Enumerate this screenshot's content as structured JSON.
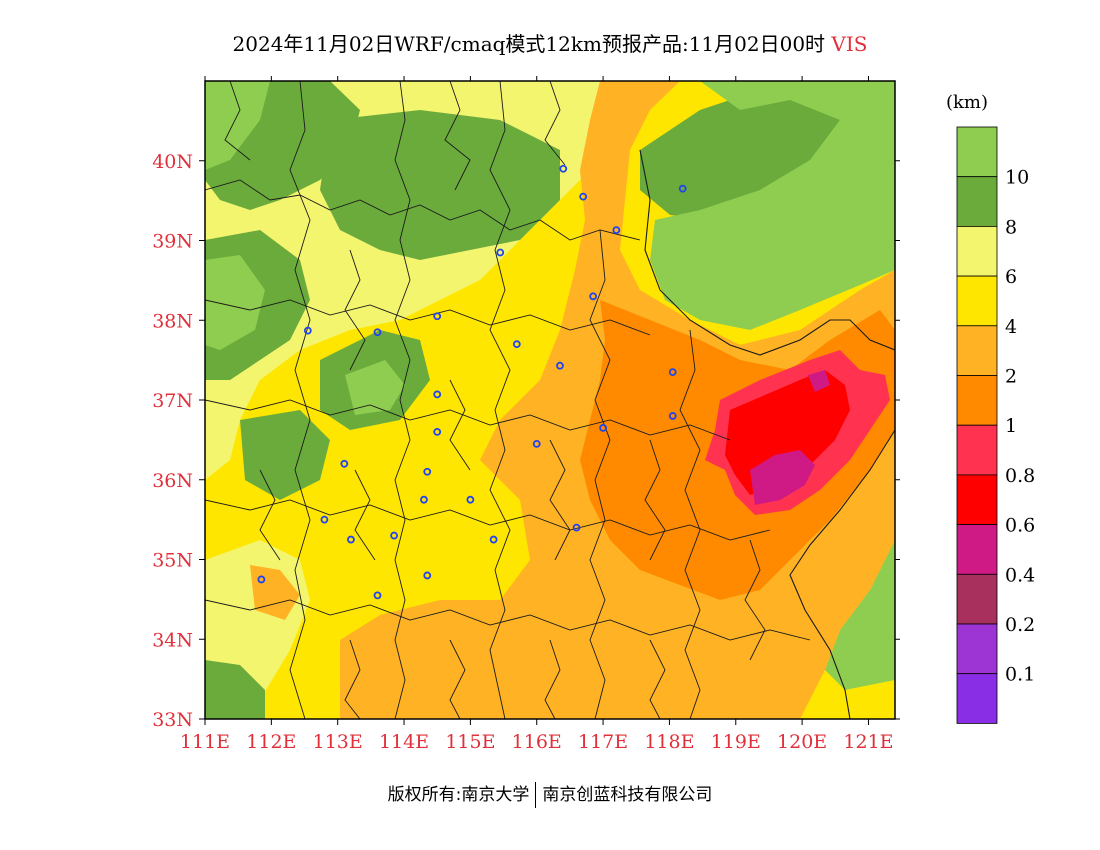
{
  "title": {
    "text": "2024年11月02日WRF/cmaq模式12km预报产品:11月02日00时",
    "variable": "VIS"
  },
  "map": {
    "x_ticks": [
      "111E",
      "112E",
      "113E",
      "114E",
      "115E",
      "116E",
      "117E",
      "118E",
      "119E",
      "120E",
      "121E"
    ],
    "y_ticks": [
      "33N",
      "34N",
      "35N",
      "36N",
      "37N",
      "38N",
      "39N",
      "40N"
    ],
    "lon_range": [
      111,
      121.4
    ],
    "lat_range": [
      33,
      41
    ],
    "background_color": "#ffe600",
    "city_marker_color": "#2244ee",
    "cities": [
      {
        "lon": 116.4,
        "lat": 39.9
      },
      {
        "lon": 116.7,
        "lat": 39.55
      },
      {
        "lon": 117.2,
        "lat": 39.13
      },
      {
        "lon": 118.2,
        "lat": 39.65
      },
      {
        "lon": 115.45,
        "lat": 38.85
      },
      {
        "lon": 116.85,
        "lat": 38.3
      },
      {
        "lon": 114.5,
        "lat": 38.05
      },
      {
        "lon": 112.55,
        "lat": 37.87
      },
      {
        "lon": 113.6,
        "lat": 37.85
      },
      {
        "lon": 115.7,
        "lat": 37.7
      },
      {
        "lon": 116.35,
        "lat": 37.43
      },
      {
        "lon": 118.05,
        "lat": 37.35
      },
      {
        "lon": 114.5,
        "lat": 37.07
      },
      {
        "lon": 118.05,
        "lat": 36.8
      },
      {
        "lon": 117.0,
        "lat": 36.65
      },
      {
        "lon": 114.5,
        "lat": 36.6
      },
      {
        "lon": 116.0,
        "lat": 36.45
      },
      {
        "lon": 113.1,
        "lat": 36.2
      },
      {
        "lon": 114.35,
        "lat": 36.1
      },
      {
        "lon": 114.3,
        "lat": 35.75
      },
      {
        "lon": 115.0,
        "lat": 35.75
      },
      {
        "lon": 112.8,
        "lat": 35.5
      },
      {
        "lon": 113.2,
        "lat": 35.25
      },
      {
        "lon": 113.85,
        "lat": 35.3
      },
      {
        "lon": 115.35,
        "lat": 35.25
      },
      {
        "lon": 116.6,
        "lat": 35.4
      },
      {
        "lon": 114.35,
        "lat": 34.8
      },
      {
        "lon": 113.6,
        "lat": 34.55
      },
      {
        "lon": 111.85,
        "lat": 34.75
      }
    ]
  },
  "legend": {
    "unit": "(km)",
    "labels": [
      "10",
      "8",
      "6",
      "4",
      "2",
      "1",
      "0.8",
      "0.6",
      "0.4",
      "0.2",
      "0.1"
    ],
    "colors": [
      "#8fcd50",
      "#6aab3c",
      "#f4f56e",
      "#ffe600",
      "#ffb223",
      "#ff8a00",
      "#ff3350",
      "#ff0000",
      "#cf1a86",
      "#a8305c",
      "#9d34d4",
      "#8a2ee6"
    ]
  },
  "footer": {
    "copyright": "版权所有:南京大学",
    "company": "南京创蓝科技有限公司"
  }
}
